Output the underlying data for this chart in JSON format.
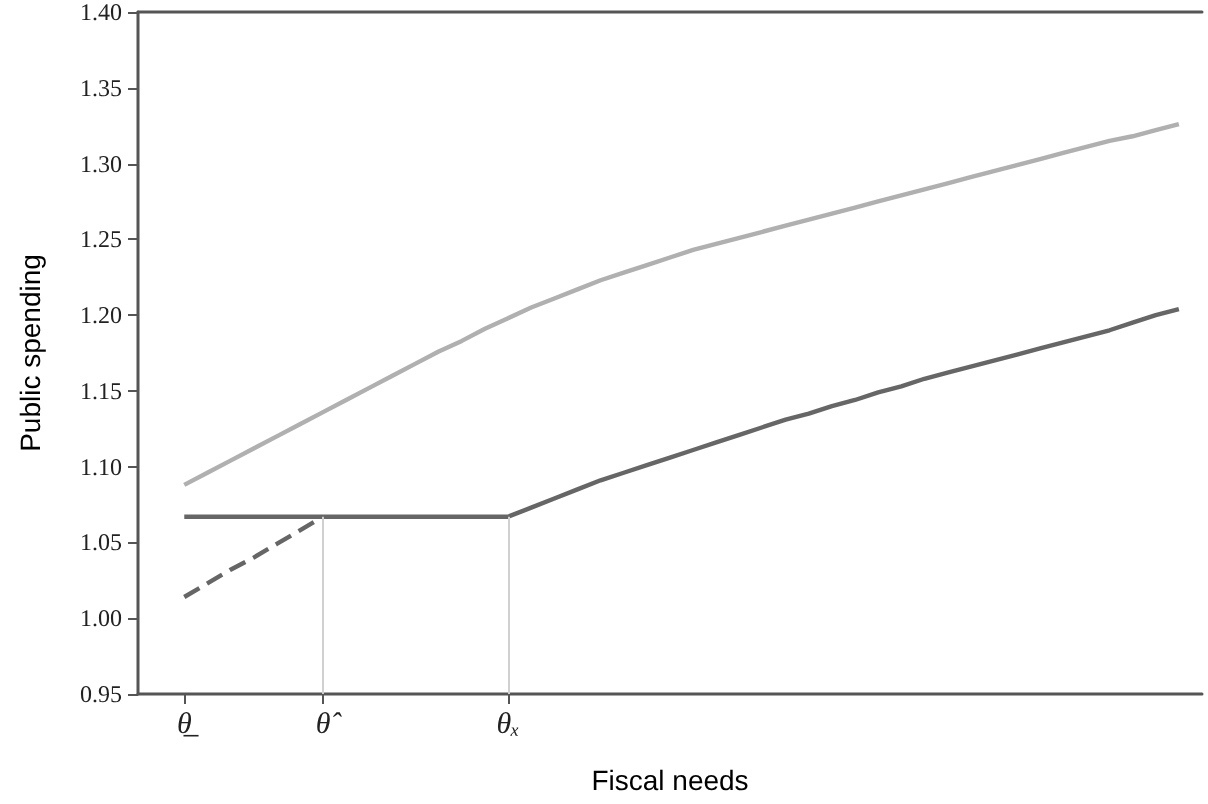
{
  "chart_data": {
    "type": "line",
    "xlabel": "Fiscal needs",
    "ylabel": "Public spending",
    "categories": [
      null,
      null,
      "θ̲",
      null,
      null,
      null,
      null,
      null,
      "θ̂",
      null,
      null,
      null,
      null,
      null,
      null,
      null,
      "θₓ",
      null,
      null,
      null,
      null,
      null,
      null,
      null,
      null,
      null,
      null,
      null,
      null,
      null,
      null,
      null,
      null,
      null,
      null,
      null,
      null,
      null,
      null,
      null,
      null,
      null,
      null,
      null,
      null,
      null,
      null
    ],
    "ylim": [
      0.95,
      1.4
    ],
    "yticks": [
      {
        "value": 0.95,
        "label": "0.95"
      },
      {
        "value": 1.0,
        "label": "1.00"
      },
      {
        "value": 1.05,
        "label": "1.05"
      },
      {
        "value": 1.1,
        "label": "1.10"
      },
      {
        "value": 1.15,
        "label": "1.15"
      },
      {
        "value": 1.2,
        "label": "1.20"
      },
      {
        "value": 1.25,
        "label": "1.25"
      },
      {
        "value": 1.3,
        "label": "1.30"
      },
      {
        "value": 1.35,
        "label": "1.35"
      },
      {
        "value": 1.4,
        "label": "1.40"
      }
    ],
    "grid": false,
    "marker": "none",
    "ref_lines": [
      {
        "axis": "x",
        "value": "θ̂",
        "color": "#d0d0d0"
      },
      {
        "axis": "x",
        "value": "θₓ",
        "color": "#d0d0d0"
      }
    ],
    "series": [
      {
        "color": "#b0b0b0",
        "values": [
          null,
          null,
          1.088,
          1.096,
          1.104,
          1.112,
          1.12,
          1.128,
          1.136,
          1.144,
          1.152,
          1.16,
          1.168,
          1.176,
          1.183,
          1.191,
          1.198,
          1.205,
          1.211,
          1.217,
          1.223,
          1.228,
          1.233,
          1.238,
          1.243,
          1.247,
          1.251,
          1.255,
          1.259,
          1.263,
          1.267,
          1.271,
          1.275,
          1.279,
          1.283,
          1.287,
          1.291,
          1.295,
          1.299,
          1.303,
          1.307,
          1.311,
          1.315,
          1.318,
          1.322,
          1.326,
          null
        ]
      },
      {
        "color": "#666666",
        "values": [
          null,
          null,
          1.067,
          1.067,
          1.067,
          1.067,
          1.067,
          1.067,
          1.067,
          1.067,
          1.067,
          1.067,
          1.067,
          1.067,
          1.067,
          1.067,
          1.067,
          1.073,
          1.079,
          1.085,
          1.091,
          1.096,
          1.101,
          1.106,
          1.111,
          1.116,
          1.121,
          1.126,
          1.131,
          1.135,
          1.14,
          1.144,
          1.149,
          1.153,
          1.158,
          1.162,
          1.166,
          1.17,
          1.174,
          1.178,
          1.182,
          1.186,
          1.19,
          1.195,
          1.2,
          1.204,
          null
        ]
      },
      {
        "color": "#666666",
        "line_style": "dashed",
        "values": [
          null,
          null,
          1.014,
          1.023,
          1.032,
          1.04,
          1.049,
          1.058,
          1.067,
          null,
          null,
          null,
          null,
          null,
          null,
          null,
          null,
          null,
          null,
          null,
          null,
          null,
          null,
          null,
          null,
          null,
          null,
          null,
          null,
          null,
          null,
          null,
          null,
          null,
          null,
          null,
          null,
          null,
          null,
          null,
          null,
          null,
          null,
          null,
          null,
          null,
          null
        ]
      }
    ]
  }
}
